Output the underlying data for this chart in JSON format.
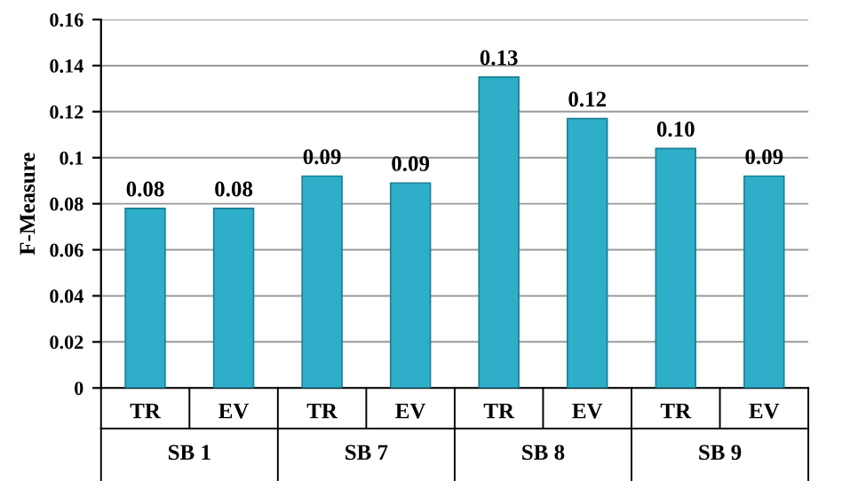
{
  "chart_data": {
    "type": "bar",
    "ylabel": "F-Measure",
    "categories": [
      "TR",
      "EV",
      "TR",
      "EV",
      "TR",
      "EV",
      "TR",
      "EV"
    ],
    "values": [
      0.078,
      0.078,
      0.092,
      0.089,
      0.135,
      0.117,
      0.104,
      0.092
    ],
    "value_labels": [
      "0.08",
      "0.08",
      "0.09",
      "0.09",
      "0.13",
      "0.12",
      "0.10",
      "0.09"
    ],
    "color": "#2eaec8",
    "ylim": [
      0,
      0.16
    ],
    "yticks": [
      0,
      0.02,
      0.04,
      0.06,
      0.08,
      0.1,
      0.12,
      0.14,
      0.16
    ],
    "grid": "y",
    "annotations": [
      "SB 1",
      "SB 7",
      "SB 8",
      "SB 9"
    ]
  }
}
